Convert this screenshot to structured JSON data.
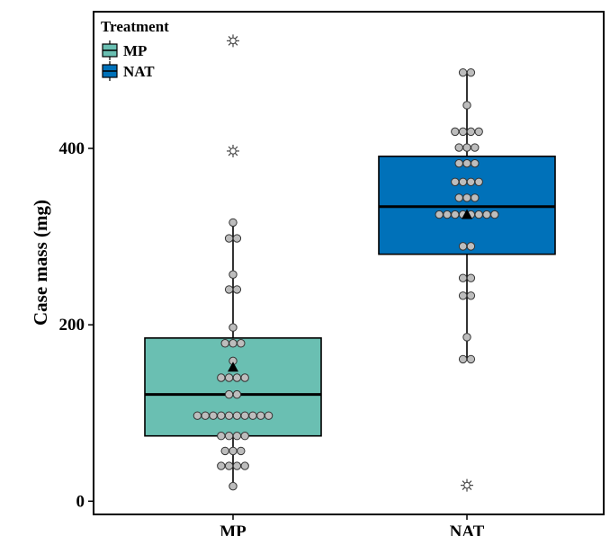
{
  "chart_data": {
    "type": "box",
    "ylabel": "Case mass (mg)",
    "xlabel": "",
    "ylim": [
      -15,
      555
    ],
    "yticks": [
      0,
      200,
      400
    ],
    "categories": [
      "MP",
      "NAT"
    ],
    "legend": {
      "title": "Treatment",
      "position": "top-left",
      "entries": [
        {
          "label": "MP",
          "color": "#6abfb2"
        },
        {
          "label": "NAT",
          "color": "#0071b9"
        }
      ]
    },
    "grid": false,
    "series": [
      {
        "name": "MP",
        "color": "#6abfb2",
        "box": {
          "q1": 74,
          "median": 121,
          "q3": 185
        },
        "whisker": {
          "low": 17,
          "high": 316
        },
        "mean": 152,
        "outliers": [
          397,
          522
        ],
        "points": [
          17,
          40,
          40,
          40,
          40,
          57,
          57,
          57,
          74,
          74,
          74,
          74,
          97,
          97,
          97,
          97,
          97,
          97,
          97,
          97,
          97,
          97,
          121,
          121,
          140,
          140,
          140,
          140,
          159,
          179,
          179,
          179,
          197,
          240,
          240,
          257,
          298,
          298,
          316
        ]
      },
      {
        "name": "NAT",
        "color": "#0071b9",
        "box": {
          "q1": 280,
          "median": 334,
          "q3": 391
        },
        "whisker": {
          "low": 161,
          "high": 486
        },
        "mean": 325,
        "outliers": [
          18
        ],
        "points": [
          161,
          161,
          186,
          233,
          233,
          253,
          253,
          289,
          289,
          325,
          325,
          325,
          325,
          325,
          325,
          325,
          325,
          344,
          344,
          344,
          362,
          362,
          362,
          362,
          383,
          383,
          383,
          401,
          401,
          401,
          419,
          419,
          419,
          419,
          449,
          486,
          486
        ]
      }
    ]
  },
  "colors": {
    "mp": "#6abfb2",
    "nat": "#0071b9",
    "point_fill": "#bdbdbd"
  }
}
